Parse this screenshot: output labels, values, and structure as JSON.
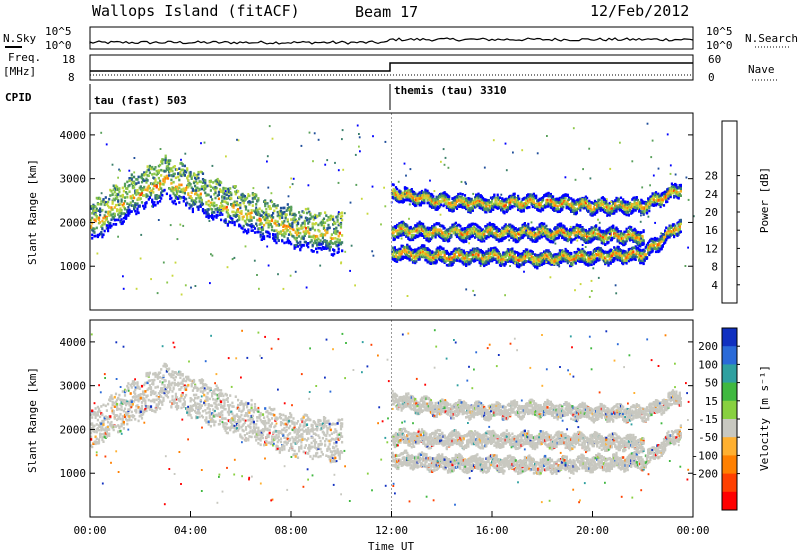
{
  "header": {
    "station": "Wallops Island (fitACF)",
    "beam": "Beam 17",
    "date": "12/Feb/2012"
  },
  "noise_panel": {
    "left_label": "N.Sky",
    "right_label": "N.Search",
    "tick_top": "10^5",
    "tick_bottom": "10^0"
  },
  "freq_panel": {
    "left_label_1": "Freq.",
    "left_label_2": "[MHz]",
    "right_label": "Nave",
    "left_ticks": [
      "18",
      "8"
    ],
    "right_ticks": [
      "60",
      "0"
    ]
  },
  "cpid_panel": {
    "label": "CPID",
    "modes": [
      {
        "name": "tau (fast) 503",
        "start_hour": 0
      },
      {
        "name": "themis (tau) 3310",
        "start_hour": 12
      }
    ]
  },
  "chart_data": [
    {
      "type": "heatmap",
      "quantity": "Power",
      "ylabel": "Slant Range [km]",
      "xlim": [
        0,
        24
      ],
      "ylim": [
        0,
        4500
      ],
      "yticks": [
        "1000",
        "2000",
        "3000",
        "4000"
      ],
      "colorbar": {
        "label": "Power [dB]",
        "ticks": [
          "4",
          "8",
          "12",
          "16",
          "20",
          "24",
          "28"
        ],
        "colors": [
          "#0000ff",
          "#1f4e9a",
          "#3b7f6a",
          "#58a05a",
          "#8dc84a",
          "#c8d83c",
          "#f5b020",
          "#ff8000",
          "#ff4000",
          "#ff0000"
        ]
      },
      "echo_bands": [
        {
          "hours": [
            0,
            1.5,
            3,
            4.5,
            6,
            8,
            10
          ],
          "range_km": [
            2000,
            2600,
            3050,
            2650,
            2300,
            1900,
            1750
          ]
        },
        {
          "hours": [
            12,
            14,
            16,
            18,
            20,
            22,
            23.5
          ],
          "range_km": [
            2700,
            2500,
            2450,
            2500,
            2400,
            2400,
            2800
          ]
        },
        {
          "hours": [
            12,
            14,
            16,
            18,
            20,
            22,
            23.5
          ],
          "range_km": [
            1350,
            1250,
            1250,
            1200,
            1250,
            1300,
            2000
          ]
        },
        {
          "hours": [
            12,
            14,
            16,
            18,
            20,
            22
          ],
          "range_km": [
            1850,
            1800,
            1800,
            1800,
            1750,
            1700
          ]
        }
      ]
    },
    {
      "type": "heatmap",
      "quantity": "Velocity",
      "ylabel": "Slant Range [km]",
      "xlabel": "Time UT",
      "xlim": [
        0,
        24
      ],
      "ylim": [
        0,
        4500
      ],
      "xticks": [
        "00:00",
        "04:00",
        "08:00",
        "12:00",
        "16:00",
        "20:00",
        "00:00"
      ],
      "yticks": [
        "1000",
        "2000",
        "3000",
        "4000"
      ],
      "colorbar": {
        "label": "Velocity [m s⁻¹]",
        "ticks": [
          "200",
          "100",
          "50",
          "15",
          "-15",
          "-50",
          "-100",
          "-200"
        ],
        "colors": [
          "#1030c0",
          "#2a6ad8",
          "#2fa0a0",
          "#40b840",
          "#88d040",
          "#c8c8c0",
          "#ffb030",
          "#ff8000",
          "#ff4000",
          "#ff0000"
        ]
      }
    }
  ]
}
